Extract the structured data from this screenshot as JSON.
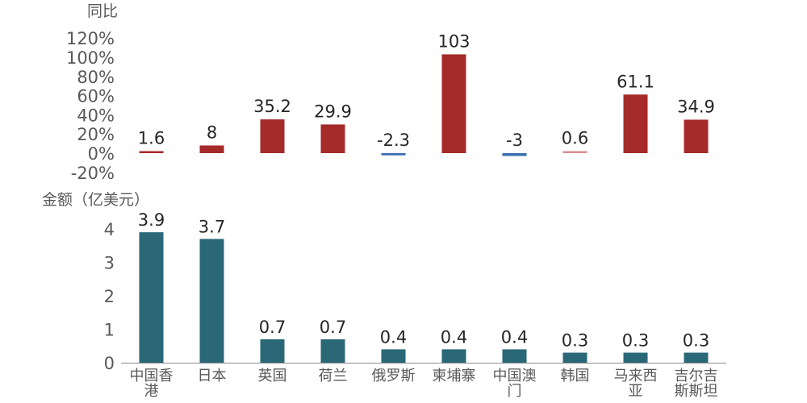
{
  "chart_data": [
    {
      "type": "bar",
      "ylabel": "同比",
      "ylim": [
        -20,
        120
      ],
      "yticks": [
        "120%",
        "100%",
        "80%",
        "60%",
        "40%",
        "20%",
        "0%",
        "-20%"
      ],
      "ytick_values": [
        120,
        100,
        80,
        60,
        40,
        20,
        0,
        -20
      ],
      "categories": [
        "中国香港",
        "日本",
        "英国",
        "荷兰",
        "俄罗斯",
        "柬埔寨",
        "中国澳门",
        "韩国",
        "马来西亚",
        "吉尔吉斯斯坦"
      ],
      "values": [
        1.6,
        8,
        35.2,
        29.9,
        -2.3,
        103,
        -3,
        0.6,
        61.1,
        34.9
      ],
      "value_labels": [
        "1.6",
        "8",
        "35.2",
        "29.9",
        "-2.3",
        "103",
        "-3",
        "0.6",
        "61.1",
        "34.9"
      ],
      "colors": {
        "positive": "#a52a2a",
        "negative": "#3a6fb0",
        "small": "#d98c8c"
      }
    },
    {
      "type": "bar",
      "ylabel": "金额（亿美元）",
      "ylim": [
        0,
        4
      ],
      "yticks": [
        "4",
        "3",
        "2",
        "1",
        "0"
      ],
      "ytick_values": [
        4,
        3,
        2,
        1,
        0
      ],
      "categories": [
        "中国香港",
        "日本",
        "英国",
        "荷兰",
        "俄罗斯",
        "柬埔寨",
        "中国澳门",
        "韩国",
        "马来西亚",
        "吉尔吉斯斯坦"
      ],
      "category_lines": [
        [
          "中国香",
          "港"
        ],
        [
          "日本"
        ],
        [
          "英国"
        ],
        [
          "荷兰"
        ],
        [
          "俄罗斯"
        ],
        [
          "柬埔寨"
        ],
        [
          "中国澳",
          "门"
        ],
        [
          "韩国"
        ],
        [
          "马来西",
          "亚"
        ],
        [
          "吉尔吉",
          "斯斯坦"
        ]
      ],
      "values": [
        3.9,
        3.7,
        0.7,
        0.7,
        0.4,
        0.4,
        0.4,
        0.3,
        0.3,
        0.3
      ],
      "value_labels": [
        "3.9",
        "3.7",
        "0.7",
        "0.7",
        "0.4",
        "0.4",
        "0.4",
        "0.3",
        "0.3",
        "0.3"
      ],
      "colors": {
        "bar": "#2a6878",
        "axis": "#8c8c8c"
      }
    }
  ]
}
